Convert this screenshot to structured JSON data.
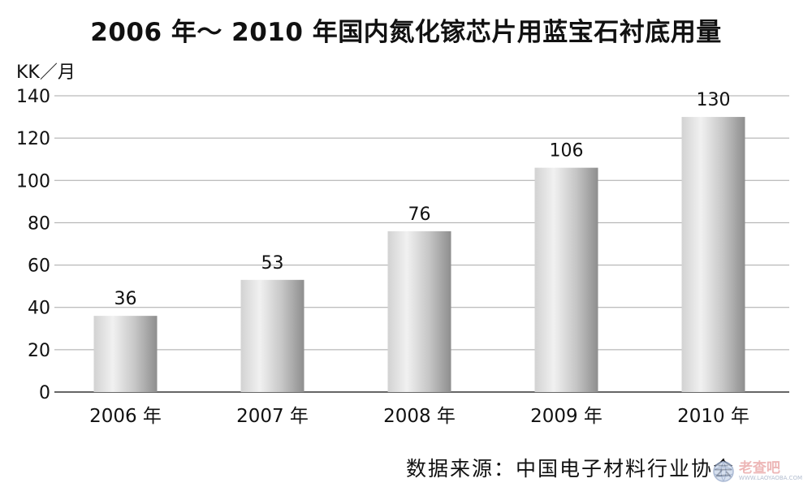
{
  "chart_data": {
    "type": "bar",
    "title": "2006 年～ 2010 年国内氮化镓芯片用蓝宝石衬底用量",
    "ylabel": "KK／月",
    "xlabel": "",
    "categories": [
      "2006 年",
      "2007 年",
      "2008 年",
      "2009 年",
      "2010 年"
    ],
    "values": [
      36,
      53,
      76,
      106,
      130
    ],
    "data_labels": [
      "36",
      "53",
      "76",
      "106",
      "130"
    ],
    "ylim": [
      0,
      140
    ],
    "yticks": [
      "0",
      "20",
      "40",
      "60",
      "80",
      "100",
      "120",
      "140"
    ],
    "grid": true,
    "legend": "none",
    "bar_color": "#c8c8c8"
  },
  "source": "数据来源：中国电子材料行业协会",
  "watermark": {
    "brand": "老查吧",
    "url": "WWW.LAOYAOBA.COM",
    "icon": "globe-icon"
  }
}
